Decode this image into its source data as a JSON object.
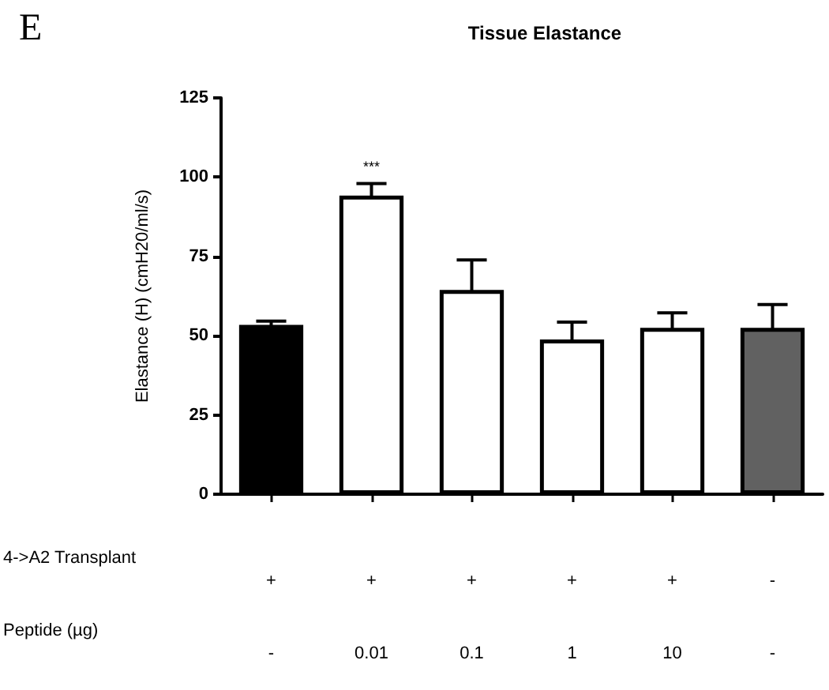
{
  "chart_data": {
    "type": "bar",
    "title": "Tissue Elastance",
    "ylabel": "Elastance (H) (cmH20/ml/s)",
    "categories": [
      "+\n-",
      "+\n0.01",
      "+\n0.1",
      "+\n1",
      "+\n10",
      "-\n-"
    ],
    "values": [
      53.4,
      94.2,
      64.4,
      48.8,
      52.5,
      52.5
    ],
    "errors": [
      1.2,
      3.8,
      9.5,
      5.5,
      4.7,
      7.3
    ],
    "colors": [
      "#000000",
      "#ffffff",
      "#ffffff",
      "#ffffff",
      "#ffffff",
      "#616161"
    ],
    "ylim": [
      0,
      125
    ],
    "yticks": [
      0,
      25,
      50,
      75,
      100,
      125
    ],
    "grid": false,
    "annotations": [
      "E",
      "***",
      "4->A2 Transplant",
      "Peptide (µg)"
    ]
  }
}
